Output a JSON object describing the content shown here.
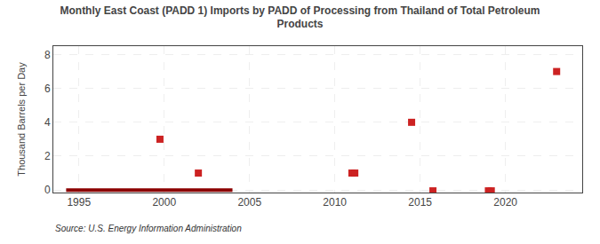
{
  "chart_data": {
    "type": "line",
    "title": "Monthly East Coast (PADD 1) Imports by PADD of Processing from Thailand of Total Petroleum\nProducts",
    "y_label": "Thousand Barrels per Day",
    "annotations": [
      {
        "text": "Source: U.S. Energy Information Administration"
      }
    ],
    "series": [
      {
        "type": "line",
        "color": "#8b0000",
        "line_style": "solid",
        "x": [
          1994.25,
          2004.0
        ],
        "values": [
          0.0,
          0.0
        ]
      },
      {
        "type": "scatter",
        "color": "#cc2222",
        "marker": "square",
        "x": [
          1999.75,
          2002.0,
          2011.0,
          2011.17,
          2014.5,
          2015.75,
          2019.0,
          2019.17,
          2023.0
        ],
        "values": [
          3.0,
          1.0,
          1.0,
          1.0,
          4.0,
          -0.05,
          -0.05,
          -0.05,
          7.0
        ]
      }
    ],
    "xlim": [
      1993.5,
      2024.5
    ],
    "xticks": [
      1995,
      2000,
      2005,
      2010,
      2015,
      2020
    ],
    "ylim": [
      -0.15,
      8.5
    ],
    "yticks": [
      0,
      2,
      4,
      6,
      8
    ],
    "grid": true
  }
}
